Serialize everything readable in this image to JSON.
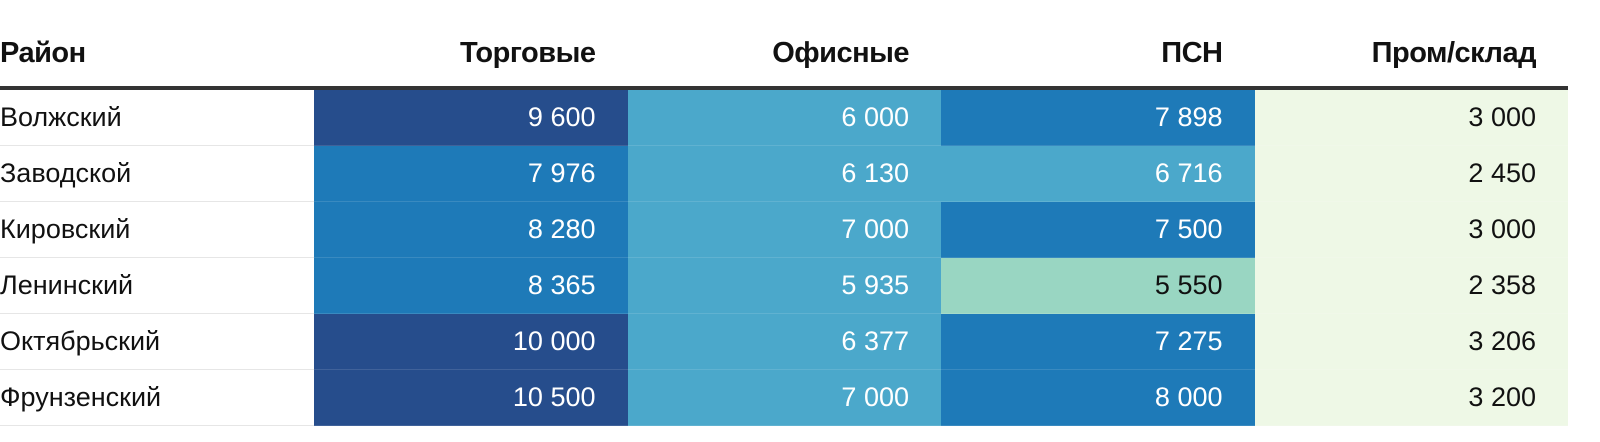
{
  "chart_data": {
    "type": "table",
    "columns": [
      "Район",
      "Торговые",
      "Офисные",
      "ПСН",
      "Пром/склад"
    ],
    "rows": [
      {
        "district": "Волжский",
        "values": [
          "9 600",
          "6 000",
          "7 898",
          "3 000"
        ],
        "colors": [
          "#264d8c",
          "#4ba8cb",
          "#1e7ab8",
          "#eef8e6"
        ]
      },
      {
        "district": "Заводской",
        "values": [
          "7 976",
          "6 130",
          "6 716",
          "2 450"
        ],
        "colors": [
          "#1e7ab8",
          "#4ba8cb",
          "#4ba8cb",
          "#eef8e6"
        ]
      },
      {
        "district": "Кировский",
        "values": [
          "8 280",
          "7 000",
          "7 500",
          "3 000"
        ],
        "colors": [
          "#1e7ab8",
          "#4ba8cb",
          "#1e7ab8",
          "#eef8e6"
        ]
      },
      {
        "district": "Ленинский",
        "values": [
          "8 365",
          "5 935",
          "5 550",
          "2 358"
        ],
        "colors": [
          "#1e7ab8",
          "#4ba8cb",
          "#99d6c2",
          "#eef8e6"
        ]
      },
      {
        "district": "Октябрьский",
        "values": [
          "10 000",
          "6 377",
          "7 275",
          "3 206"
        ],
        "colors": [
          "#264d8c",
          "#4ba8cb",
          "#1e7ab8",
          "#eef8e6"
        ]
      },
      {
        "district": "Фрунзенский",
        "values": [
          "10 500",
          "7 000",
          "8 000",
          "3 200"
        ],
        "colors": [
          "#264d8c",
          "#4ba8cb",
          "#1e7ab8",
          "#eef8e6"
        ]
      }
    ],
    "text_dark_bgs": [
      "#99d6c2",
      "#eef8e6"
    ]
  }
}
